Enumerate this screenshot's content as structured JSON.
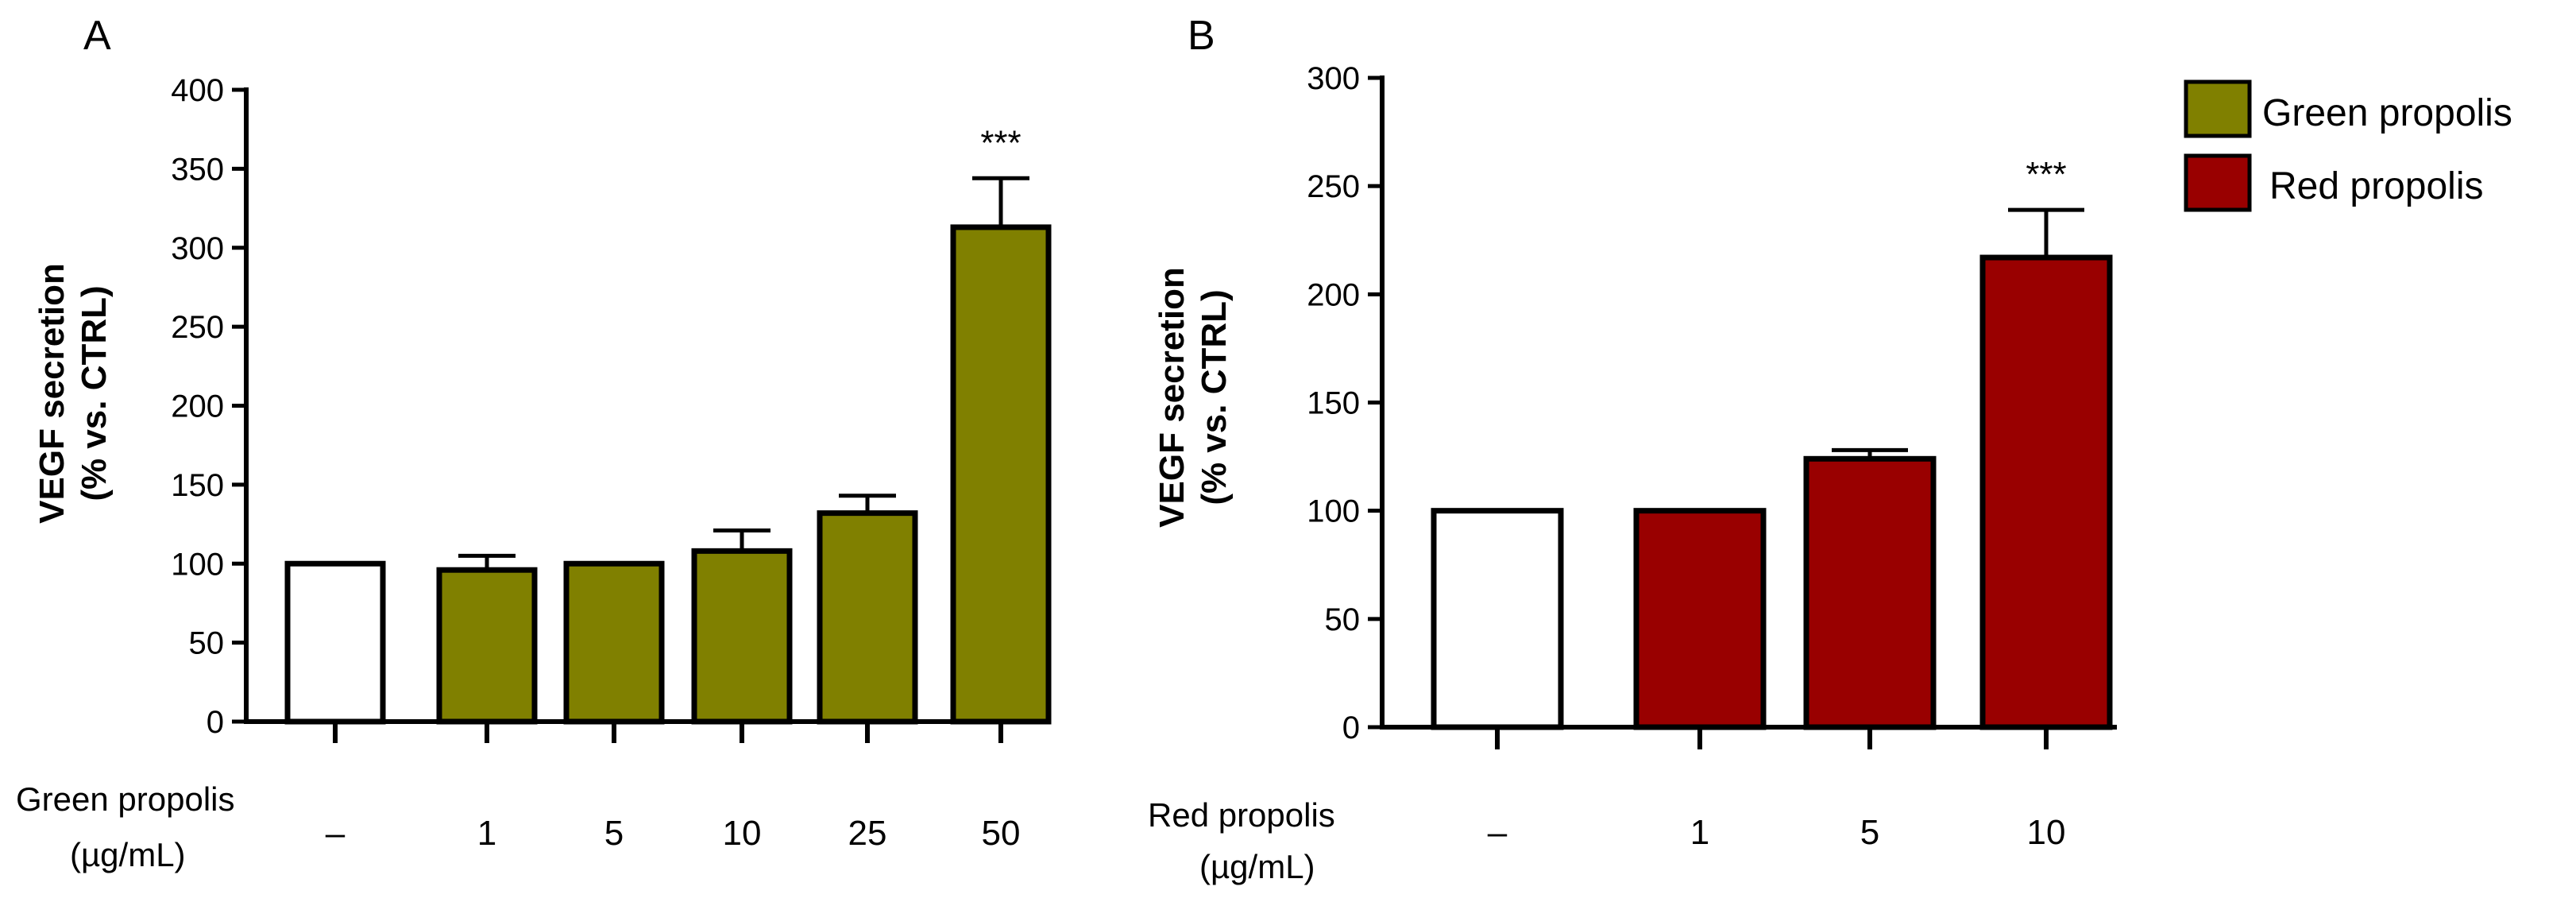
{
  "chart_data": [
    {
      "type": "bar",
      "panel_label": "A",
      "ylabel_line1": "VEGF secretion",
      "ylabel_line2": "(% vs. CTRL)",
      "ylim": [
        0,
        400
      ],
      "yticks": [
        0,
        50,
        100,
        150,
        200,
        250,
        300,
        350,
        400
      ],
      "row_label_line1": "Green propolis",
      "row_label_line2": "(µg/mL)",
      "categories": [
        "–",
        "1",
        "5",
        "10",
        "25",
        "50"
      ],
      "values": [
        100,
        96,
        100,
        108,
        132,
        313
      ],
      "errors": [
        0,
        9,
        0,
        13,
        11,
        31
      ],
      "colors": [
        "#ffffff",
        "#808000",
        "#808000",
        "#808000",
        "#808000",
        "#808000"
      ],
      "significance": [
        "",
        "",
        "",
        "",
        "",
        "***"
      ]
    },
    {
      "type": "bar",
      "panel_label": "B",
      "ylabel_line1": "VEGF secretion",
      "ylabel_line2": "(% vs. CTRL)",
      "ylim": [
        0,
        300
      ],
      "yticks": [
        0,
        50,
        100,
        150,
        200,
        250,
        300
      ],
      "row_label_line1": "Red propolis",
      "row_label_line2": "(µg/mL)",
      "categories": [
        "–",
        "1",
        "5",
        "10"
      ],
      "values": [
        100,
        100,
        124,
        217
      ],
      "errors": [
        0,
        0,
        4,
        22
      ],
      "colors": [
        "#ffffff",
        "#990000",
        "#990000",
        "#990000"
      ],
      "significance": [
        "",
        "",
        "",
        "***"
      ]
    }
  ],
  "legend": {
    "placement": "top-right",
    "items": [
      {
        "label": "Green propolis",
        "color": "#808000"
      },
      {
        "label": "Red propolis",
        "color": "#990000"
      }
    ]
  }
}
